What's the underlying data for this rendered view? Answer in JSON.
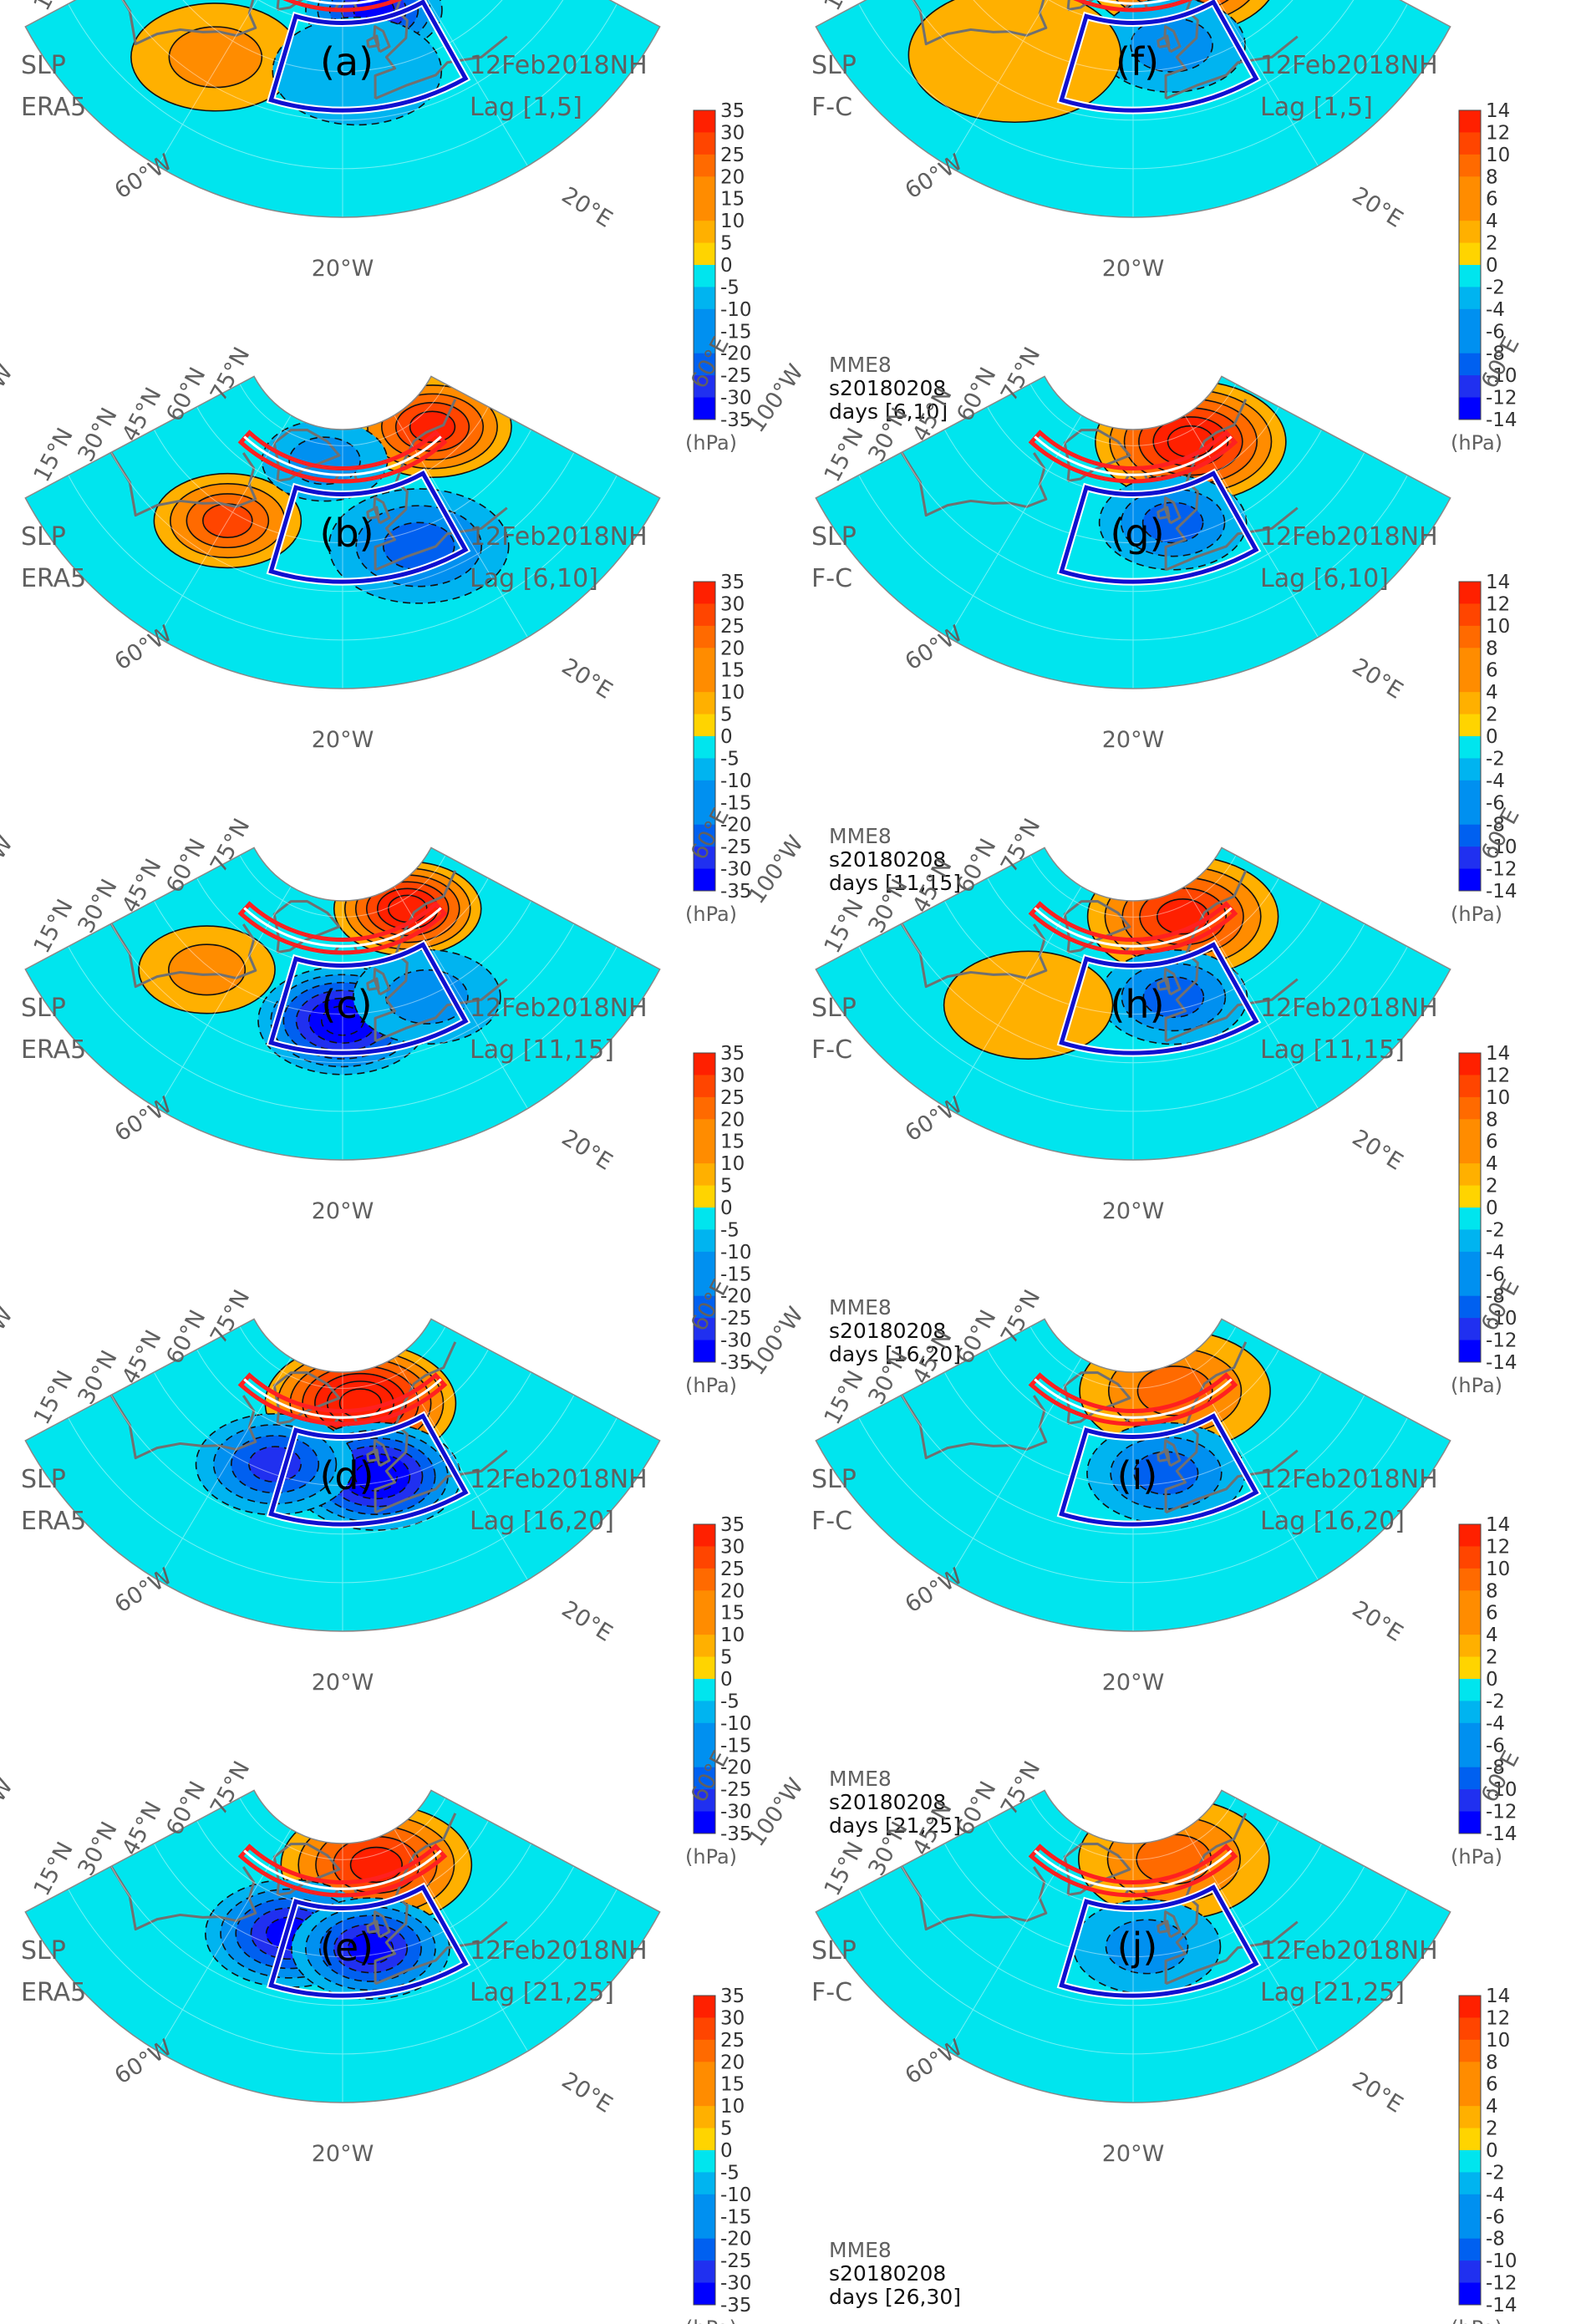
{
  "colors": {
    "ocean": "#00e5ee",
    "land": "#ffd400",
    "outline": "#707070",
    "red_band": "#ff2020",
    "blue_box": "#1010d0",
    "pos_scale": [
      "#ffd400",
      "#ffb000",
      "#ff8c00",
      "#ff6a00",
      "#ff4500",
      "#ff2000"
    ],
    "neg_scale": [
      "#00e5ee",
      "#00b4f0",
      "#0090f0",
      "#0060f0",
      "#2030f0",
      "#0000ff"
    ],
    "title_text": "#606060",
    "info_text": "#101010"
  },
  "grid_labels": {
    "lat": [
      "15°N",
      "30°N",
      "45°N",
      "60°N",
      "75°N"
    ],
    "lon_left": "100°W",
    "lon_60w": "60°W",
    "lon_20w": "20°W",
    "lon_20e": "20°E",
    "lon_60e": "60°E"
  },
  "colorbars": {
    "era5": {
      "ticks": [
        "35",
        "30",
        "25",
        "20",
        "15",
        "10",
        "5",
        "0",
        "-5",
        "-10",
        "-15",
        "-20",
        "-25",
        "-30",
        "-35"
      ],
      "unit": "(hPa)"
    },
    "fc": {
      "ticks": [
        "14",
        "12",
        "10",
        "8",
        "6",
        "4",
        "2",
        "0",
        "-2",
        "-4",
        "-6",
        "-8",
        "-10",
        "-12",
        "-14"
      ],
      "unit": "(hPa)"
    }
  },
  "panels": [
    {
      "id": "a",
      "label": "(a)",
      "var": "SLP",
      "source": "ERA5",
      "date": "12Feb2018NH",
      "lag": "Lag [1,5]",
      "model": "",
      "init": "",
      "days": "",
      "fields": [
        {
          "lon": -62,
          "lat": 38,
          "amp": 7,
          "r": 14
        },
        {
          "lon": -5,
          "lat": 63,
          "amp": -24,
          "r": 11
        },
        {
          "lon": 40,
          "lat": 70,
          "amp": 15,
          "r": 12
        },
        {
          "lon": -15,
          "lat": 45,
          "amp": -5,
          "r": 14
        }
      ]
    },
    {
      "id": "b",
      "label": "(b)",
      "var": "SLP",
      "source": "ERA5",
      "date": "12Feb2018NH",
      "lag": "Lag [6,10]",
      "model": "",
      "init": "",
      "days": "",
      "fields": [
        {
          "lon": -60,
          "lat": 42,
          "amp": 18,
          "r": 12
        },
        {
          "lon": 35,
          "lat": 70,
          "amp": 25,
          "r": 13
        },
        {
          "lon": 5,
          "lat": 40,
          "amp": -12,
          "r": 15
        },
        {
          "lon": -30,
          "lat": 70,
          "amp": -10,
          "r": 10
        }
      ]
    },
    {
      "id": "c",
      "label": "(c)",
      "var": "SLP",
      "source": "ERA5",
      "date": "12Feb2018NH",
      "lag": "Lag [11,15]",
      "model": "",
      "init": "",
      "days": "",
      "fields": [
        {
          "lon": -70,
          "lat": 44,
          "amp": 10,
          "r": 11
        },
        {
          "lon": 20,
          "lat": 72,
          "amp": 30,
          "r": 12
        },
        {
          "lon": -20,
          "lat": 43,
          "amp": -30,
          "r": 14
        },
        {
          "lon": 10,
          "lat": 45,
          "amp": -10,
          "r": 12
        }
      ]
    },
    {
      "id": "d",
      "label": "(d)",
      "var": "SLP",
      "source": "ERA5",
      "date": "12Feb2018NH",
      "lag": "Lag [16,20]",
      "model": "",
      "init": "",
      "days": "",
      "fields": [
        {
          "lon": -10,
          "lat": 70,
          "amp": 32,
          "r": 16
        },
        {
          "lon": -8,
          "lat": 47,
          "amp": -30,
          "r": 14
        },
        {
          "lon": -45,
          "lat": 48,
          "amp": -20,
          "r": 13
        }
      ]
    },
    {
      "id": "e",
      "label": "(e)",
      "var": "SLP",
      "source": "ERA5",
      "date": "12Feb2018NH",
      "lag": "Lag [21,25]",
      "model": "",
      "init": "",
      "days": "",
      "fields": [
        {
          "lon": 0,
          "lat": 72,
          "amp": 22,
          "r": 16
        },
        {
          "lon": -40,
          "lat": 50,
          "amp": -24,
          "r": 14
        },
        {
          "lon": -10,
          "lat": 47,
          "amp": -22,
          "r": 13
        }
      ]
    },
    {
      "id": "f",
      "label": "(f)",
      "var": "SLP",
      "source": "F-C",
      "date": "12Feb2018NH",
      "lag": "Lag [1,5]",
      "model": "MME8",
      "init": "s20180208",
      "days": "days [6,10]",
      "fields": [
        {
          "lon": 10,
          "lat": 72,
          "amp": 9,
          "r": 16
        },
        {
          "lon": -5,
          "lat": 52,
          "amp": -4,
          "r": 12
        },
        {
          "lon": -60,
          "lat": 40,
          "amp": 2,
          "r": 18
        }
      ]
    },
    {
      "id": "g",
      "label": "(g)",
      "var": "SLP",
      "source": "F-C",
      "date": "12Feb2018NH",
      "lag": "Lag [6,10]",
      "model": "MME8",
      "init": "s20180208",
      "days": "days [11,15]",
      "fields": [
        {
          "lon": 15,
          "lat": 72,
          "amp": 11,
          "r": 16
        },
        {
          "lon": -5,
          "lat": 50,
          "amp": -6,
          "r": 12
        }
      ]
    },
    {
      "id": "h",
      "label": "(h)",
      "var": "SLP",
      "source": "F-C",
      "date": "12Feb2018NH",
      "lag": "Lag [11,15]",
      "model": "MME8",
      "init": "s20180208",
      "days": "days [16,20]",
      "fields": [
        {
          "lon": 10,
          "lat": 72,
          "amp": 9,
          "r": 16
        },
        {
          "lon": -5,
          "lat": 49,
          "amp": -6,
          "r": 12
        },
        {
          "lon": -55,
          "lat": 40,
          "amp": 2,
          "r": 14
        }
      ]
    },
    {
      "id": "i",
      "label": "(i)",
      "var": "SLP",
      "source": "F-C",
      "date": "12Feb2018NH",
      "lag": "Lag [16,20]",
      "model": "MME8",
      "init": "s20180208",
      "days": "days [21,25]",
      "fields": [
        {
          "lon": 5,
          "lat": 72,
          "amp": 6,
          "r": 16
        },
        {
          "lon": -8,
          "lat": 48,
          "amp": -5,
          "r": 13
        }
      ]
    },
    {
      "id": "j",
      "label": "(j)",
      "var": "SLP",
      "source": "F-C",
      "date": "12Feb2018NH",
      "lag": "Lag [21,25]",
      "model": "MME8",
      "init": "s20180208",
      "days": "days [26,30]",
      "fields": [
        {
          "lon": 5,
          "lat": 73,
          "amp": 5,
          "r": 16
        },
        {
          "lon": -15,
          "lat": 48,
          "amp": -3,
          "r": 12
        }
      ]
    }
  ]
}
